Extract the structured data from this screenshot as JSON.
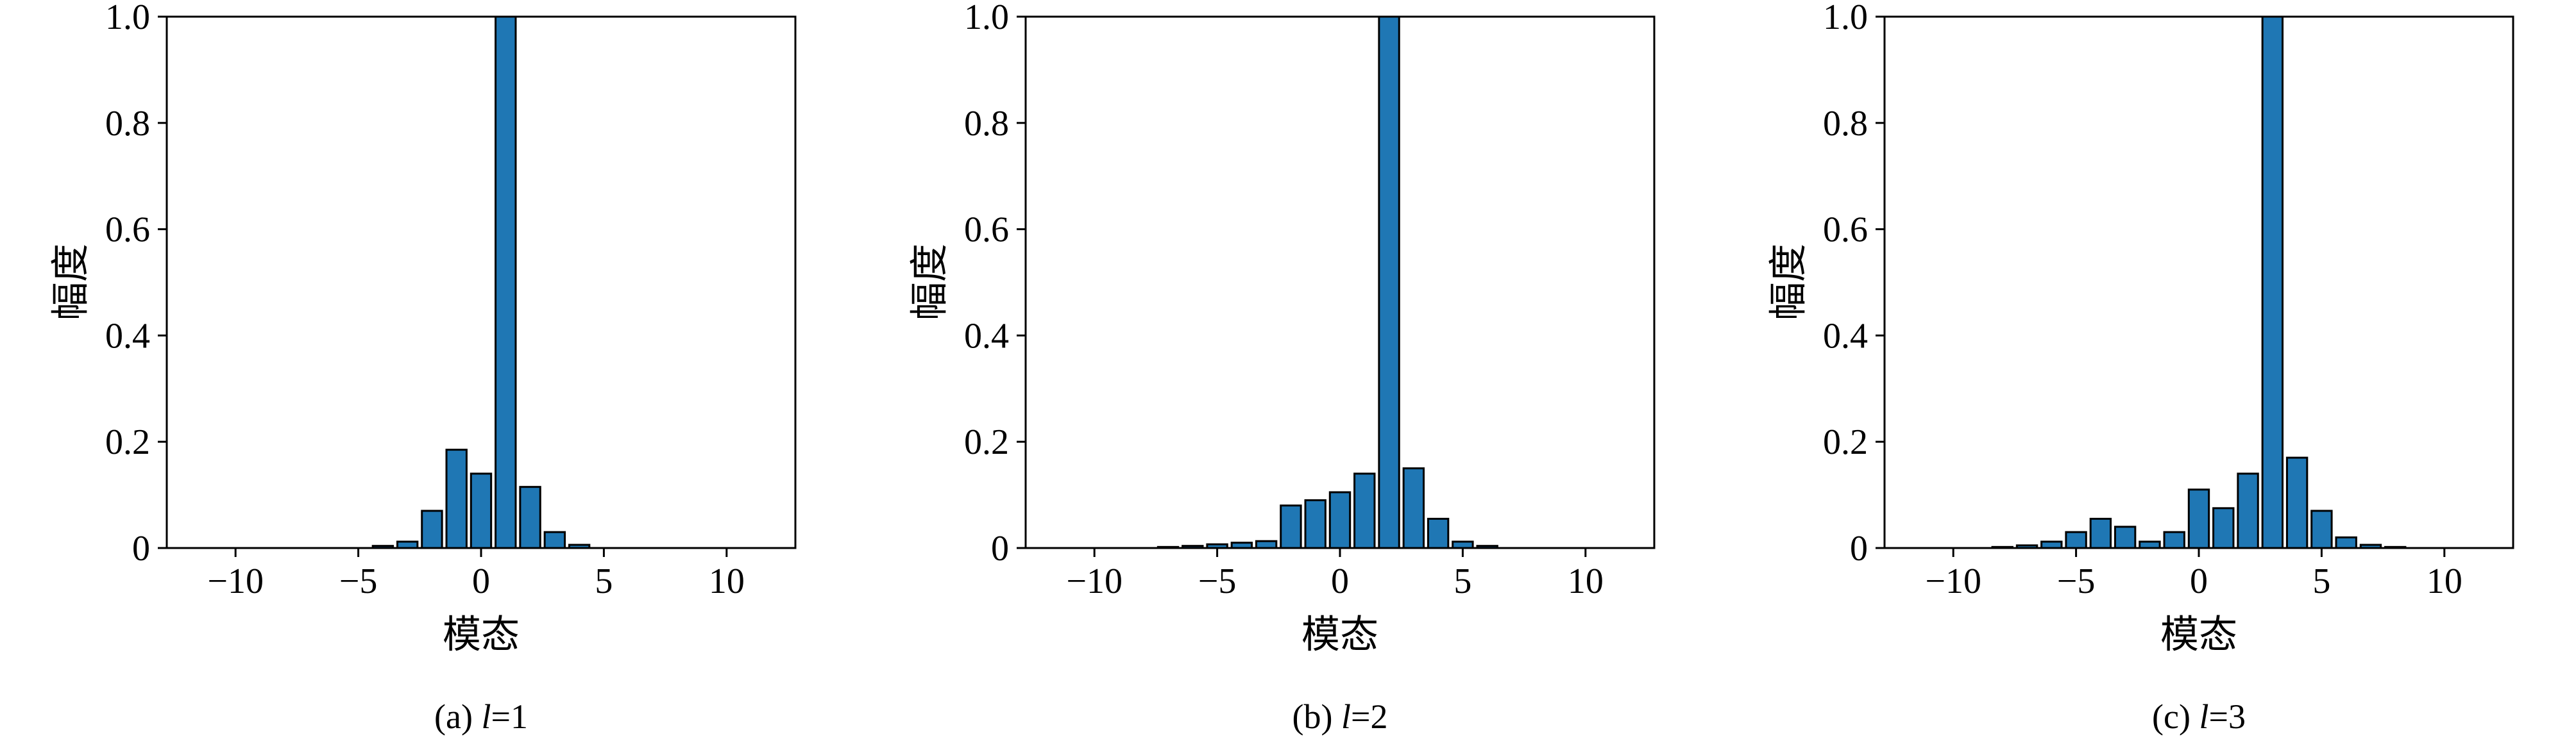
{
  "page": {
    "background": "#ffffff"
  },
  "chart_data": [
    {
      "type": "bar",
      "title": "(a) l=1",
      "caption_prefix": "(a) ",
      "caption_var": "l",
      "caption_suffix": "=1",
      "xlabel": "模态",
      "ylabel": "幅度",
      "xlim": [
        -12.8,
        12.8
      ],
      "ylim": [
        0,
        1.0
      ],
      "xticks": [
        -10,
        -5,
        0,
        5,
        10
      ],
      "xtick_labels": [
        "−10",
        "−5",
        "0",
        "5",
        "10"
      ],
      "yticks": [
        0,
        0.2,
        0.4,
        0.6,
        0.8,
        1.0
      ],
      "ytick_labels": [
        "0",
        "0.2",
        "0.4",
        "0.6",
        "0.8",
        "1.0"
      ],
      "bar_color": "#1f77b4",
      "bar_edge_color": "#000000",
      "bar_width": 0.82,
      "x": [
        -4,
        -3,
        -2,
        -1,
        0,
        1,
        2,
        3,
        4
      ],
      "values": [
        0.004,
        0.012,
        0.07,
        0.185,
        0.14,
        1.0,
        0.115,
        0.03,
        0.006
      ]
    },
    {
      "type": "bar",
      "title": "(b) l=2",
      "caption_prefix": "(b) ",
      "caption_var": "l",
      "caption_suffix": "=2",
      "xlabel": "模态",
      "ylabel": "幅度",
      "xlim": [
        -12.8,
        12.8
      ],
      "ylim": [
        0,
        1.0
      ],
      "xticks": [
        -10,
        -5,
        0,
        5,
        10
      ],
      "xtick_labels": [
        "−10",
        "−5",
        "0",
        "5",
        "10"
      ],
      "yticks": [
        0,
        0.2,
        0.4,
        0.6,
        0.8,
        1.0
      ],
      "ytick_labels": [
        "0",
        "0.2",
        "0.4",
        "0.6",
        "0.8",
        "1.0"
      ],
      "bar_color": "#1f77b4",
      "bar_edge_color": "#000000",
      "bar_width": 0.82,
      "x": [
        -7,
        -6,
        -5,
        -4,
        -3,
        -2,
        -1,
        0,
        1,
        2,
        3,
        4,
        5,
        6
      ],
      "values": [
        0.002,
        0.004,
        0.007,
        0.01,
        0.013,
        0.08,
        0.09,
        0.105,
        0.14,
        1.0,
        0.15,
        0.055,
        0.012,
        0.004
      ]
    },
    {
      "type": "bar",
      "title": "(c) l=3",
      "caption_prefix": "(c) ",
      "caption_var": "l",
      "caption_suffix": "=3",
      "xlabel": "模态",
      "ylabel": "幅度",
      "xlim": [
        -12.8,
        12.8
      ],
      "ylim": [
        0,
        1.0
      ],
      "xticks": [
        -10,
        -5,
        0,
        5,
        10
      ],
      "xtick_labels": [
        "−10",
        "−5",
        "0",
        "5",
        "10"
      ],
      "yticks": [
        0,
        0.2,
        0.4,
        0.6,
        0.8,
        1.0
      ],
      "ytick_labels": [
        "0",
        "0.2",
        "0.4",
        "0.6",
        "0.8",
        "1.0"
      ],
      "bar_color": "#1f77b4",
      "bar_edge_color": "#000000",
      "bar_width": 0.82,
      "x": [
        -8,
        -7,
        -6,
        -5,
        -4,
        -3,
        -2,
        -1,
        0,
        1,
        2,
        3,
        4,
        5,
        6,
        7,
        8
      ],
      "values": [
        0.002,
        0.005,
        0.012,
        0.03,
        0.055,
        0.04,
        0.012,
        0.03,
        0.11,
        0.075,
        0.14,
        1.0,
        0.17,
        0.07,
        0.02,
        0.006,
        0.002
      ]
    }
  ]
}
